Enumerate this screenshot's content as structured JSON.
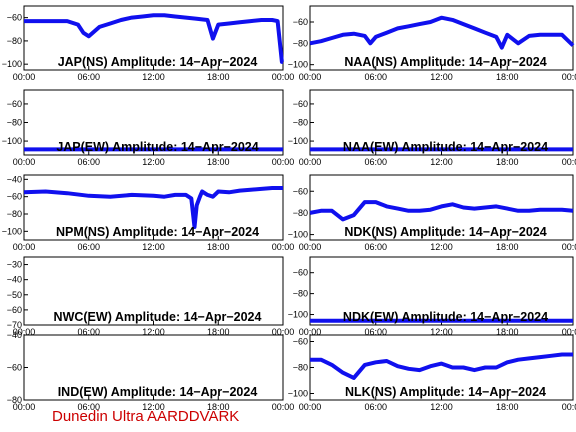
{
  "footer": "Dunedin Ultra AARDDVARK",
  "colors": {
    "trace": "#1010ee",
    "axis": "#000000",
    "footer": "#cc0000"
  },
  "x_ticks": [
    "00:00",
    "06:00",
    "12:00",
    "18:00",
    "00:00"
  ],
  "chart_data": [
    {
      "type": "line",
      "title": "JAP(NS) Amplitude: 14−Apr−2024",
      "ylim": [
        -105,
        -50
      ],
      "yticks": [
        -100,
        -80,
        -60
      ],
      "series": [
        {
          "x": [
            0,
            1,
            2,
            3,
            4,
            5,
            5.5,
            6,
            7,
            8,
            9,
            10,
            11,
            12,
            13,
            14,
            15,
            16,
            17,
            17.5,
            18,
            19,
            20,
            21,
            22,
            23,
            23.5,
            23.9,
            24
          ],
          "y": [
            -63,
            -63,
            -63,
            -63,
            -63,
            -66,
            -73,
            -76,
            -68,
            -65,
            -62,
            -60,
            -59,
            -58,
            -58,
            -59,
            -60,
            -61,
            -62,
            -78,
            -66,
            -65,
            -64,
            -63,
            -62,
            -62,
            -63,
            -98,
            -98
          ]
        }
      ]
    },
    {
      "type": "line",
      "title": "NAA(NS) Amplitude: 14−Apr−2024",
      "ylim": [
        -105,
        -45
      ],
      "yticks": [
        -100,
        -80,
        -60
      ],
      "series": [
        {
          "x": [
            0,
            1,
            2,
            3,
            4,
            5,
            5.5,
            6,
            7,
            8,
            9,
            10,
            11,
            12,
            13,
            14,
            15,
            16,
            17,
            17.5,
            18,
            19,
            20,
            21,
            22,
            23,
            24
          ],
          "y": [
            -80,
            -78,
            -75,
            -72,
            -71,
            -73,
            -80,
            -74,
            -70,
            -66,
            -64,
            -62,
            -60,
            -56,
            -58,
            -62,
            -66,
            -70,
            -74,
            -84,
            -72,
            -80,
            -73,
            -72,
            -72,
            -72,
            -82
          ]
        }
      ]
    },
    {
      "type": "line",
      "title": "JAP(EW) Amplitude: 14−Apr−2024",
      "ylim": [
        -115,
        -45
      ],
      "yticks": [
        -100,
        -80,
        -60
      ],
      "series": [
        {
          "x": [
            0,
            6,
            12,
            18,
            24
          ],
          "y": [
            -109,
            -109,
            -109,
            -109,
            -109
          ]
        }
      ]
    },
    {
      "type": "line",
      "title": "NAA(EW) Amplitude: 14−Apr−2024",
      "ylim": [
        -115,
        -45
      ],
      "yticks": [
        -100,
        -80,
        -60
      ],
      "series": [
        {
          "x": [
            0,
            6,
            12,
            18,
            24
          ],
          "y": [
            -109,
            -109,
            -109,
            -109,
            -109
          ]
        }
      ]
    },
    {
      "type": "line",
      "title": "NPM(NS) Amplitude: 14−Apr−2024",
      "ylim": [
        -110,
        -35
      ],
      "yticks": [
        -100,
        -80,
        -60,
        -40
      ],
      "series": [
        {
          "x": [
            0,
            2,
            4,
            6,
            8,
            10,
            12,
            13,
            14,
            15,
            15.5,
            15.8,
            16,
            16.3,
            16.5,
            17,
            17.5,
            18,
            19,
            20,
            21,
            22,
            23,
            24
          ],
          "y": [
            -55,
            -54,
            -56,
            -59,
            -60,
            -58,
            -59,
            -60,
            -58,
            -58,
            -62,
            -95,
            -70,
            -60,
            -54,
            -58,
            -60,
            -54,
            -55,
            -53,
            -52,
            -51,
            -50,
            -50
          ]
        }
      ]
    },
    {
      "type": "line",
      "title": "NDK(NS) Amplitude: 14−Apr−2024",
      "ylim": [
        -105,
        -45
      ],
      "yticks": [
        -100,
        -80,
        -60
      ],
      "series": [
        {
          "x": [
            0,
            1,
            2,
            3,
            4,
            5,
            6,
            7,
            8,
            9,
            10,
            11,
            12,
            13,
            14,
            15,
            16,
            17,
            18,
            19,
            20,
            21,
            22,
            23,
            24
          ],
          "y": [
            -80,
            -78,
            -78,
            -86,
            -82,
            -70,
            -70,
            -74,
            -76,
            -78,
            -78,
            -77,
            -74,
            -72,
            -75,
            -76,
            -75,
            -74,
            -76,
            -78,
            -78,
            -77,
            -77,
            -77,
            -78
          ]
        }
      ]
    },
    {
      "type": "line",
      "title": "NWC(EW) Amplitude: 14−Apr−2024",
      "ylim": [
        -70,
        -25
      ],
      "yticks": [
        -70,
        -60,
        -50,
        -40,
        -30
      ],
      "series": []
    },
    {
      "type": "line",
      "title": "NDK(EW) Amplitude: 14−Apr−2024",
      "ylim": [
        -110,
        -45
      ],
      "yticks": [
        -100,
        -80,
        -60
      ],
      "series": [
        {
          "x": [
            0,
            6,
            12,
            18,
            24
          ],
          "y": [
            -106,
            -106,
            -106,
            -106,
            -106
          ]
        }
      ]
    },
    {
      "type": "line",
      "title": "IND(EW) Amplitude: 14−Apr−2024",
      "ylim": [
        -80,
        -40
      ],
      "yticks": [
        -80,
        -60,
        -40
      ],
      "series": []
    },
    {
      "type": "line",
      "title": "NLK(NS) Amplitude: 14−Apr−2024",
      "ylim": [
        -105,
        -55
      ],
      "yticks": [
        -100,
        -80,
        -60
      ],
      "series": [
        {
          "x": [
            0,
            1,
            2,
            3,
            4,
            5,
            6,
            7,
            8,
            9,
            10,
            11,
            12,
            13,
            14,
            15,
            16,
            17,
            18,
            19,
            20,
            21,
            22,
            23,
            24
          ],
          "y": [
            -74,
            -74,
            -78,
            -84,
            -88,
            -78,
            -76,
            -75,
            -79,
            -81,
            -82,
            -79,
            -77,
            -80,
            -80,
            -82,
            -80,
            -80,
            -76,
            -74,
            -73,
            -72,
            -71,
            -70,
            -70
          ]
        }
      ]
    }
  ]
}
